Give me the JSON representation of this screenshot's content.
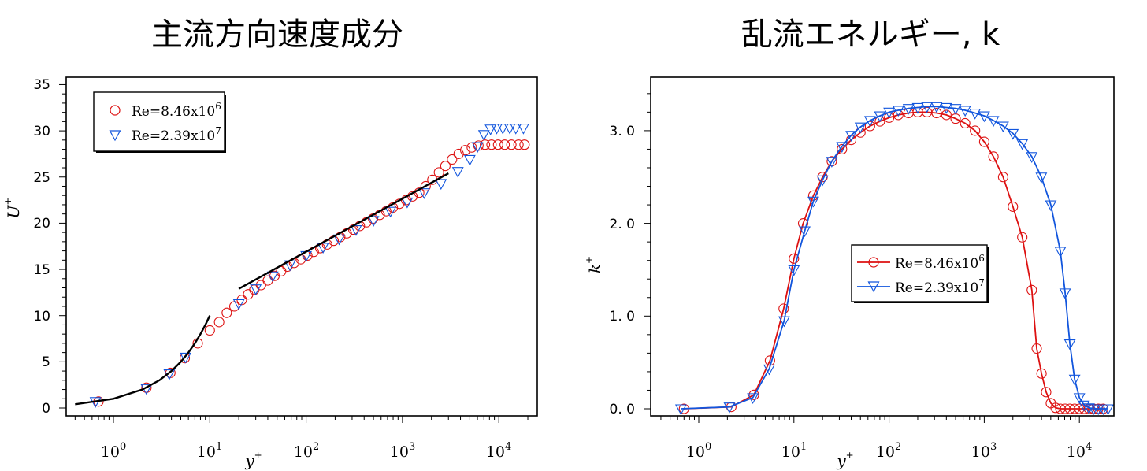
{
  "colors": {
    "red": "#dd1111",
    "blue": "#1155dd",
    "black": "#000000"
  },
  "charts": [
    {
      "id": "left",
      "title": "主流方向速度成分",
      "xlabel": "y",
      "xlabel_sup": "+",
      "ylabel": "U",
      "ylabel_sup": "+",
      "yticks": [
        "0",
        "5",
        "10",
        "15",
        "20",
        "25",
        "30",
        "35"
      ],
      "xtick_base": "10",
      "xtick_exps": [
        "0",
        "1",
        "2",
        "3",
        "4"
      ],
      "legend": [
        {
          "text": "Re=8.46x10",
          "sup": "6"
        },
        {
          "text": "Re=2.39x10",
          "sup": "7"
        }
      ]
    },
    {
      "id": "right",
      "title": "乱流エネルギー, k",
      "xlabel": "y",
      "xlabel_sup": "+",
      "ylabel": "k",
      "ylabel_sup": "+",
      "yticks": [
        "0. 0",
        "1. 0",
        "2. 0",
        "3. 0"
      ],
      "xtick_base": "10",
      "xtick_exps": [
        "0",
        "1",
        "2",
        "3",
        "4"
      ],
      "legend": [
        {
          "text": "Re=8.46x10",
          "sup": "6"
        },
        {
          "text": "Re=2.39x10",
          "sup": "7"
        }
      ]
    }
  ],
  "chart_data": [
    {
      "type": "scatter",
      "title": "主流方向速度成分",
      "xlabel": "y+",
      "ylabel": "U+",
      "xscale": "log",
      "xlim": [
        0.3,
        25000
      ],
      "ylim": [
        -1,
        35
      ],
      "legend_position": "top-left",
      "series": [
        {
          "name": "Re=8.46x10^6",
          "marker": "circle",
          "color": "red",
          "points": [
            [
              0.7,
              0.7
            ],
            [
              2.2,
              2.2
            ],
            [
              3.9,
              3.8
            ],
            [
              5.5,
              5.4
            ],
            [
              7.5,
              7.0
            ],
            [
              10,
              8.4
            ],
            [
              12.5,
              9.3
            ],
            [
              15,
              10.3
            ],
            [
              18,
              11.0
            ],
            [
              21.5,
              11.7
            ],
            [
              25,
              12.3
            ],
            [
              29,
              12.8
            ],
            [
              34,
              13.3
            ],
            [
              40,
              13.8
            ],
            [
              47,
              14.3
            ],
            [
              55,
              14.8
            ],
            [
              64,
              15.3
            ],
            [
              75,
              15.7
            ],
            [
              88,
              16.1
            ],
            [
              103,
              16.5
            ],
            [
              120,
              16.9
            ],
            [
              140,
              17.3
            ],
            [
              165,
              17.7
            ],
            [
              193,
              18.1
            ],
            [
              226,
              18.5
            ],
            [
              264,
              18.9
            ],
            [
              309,
              19.3
            ],
            [
              361,
              19.7
            ],
            [
              423,
              20.1
            ],
            [
              495,
              20.5
            ],
            [
              580,
              20.9
            ],
            [
              678,
              21.3
            ],
            [
              794,
              21.7
            ],
            [
              930,
              22.1
            ],
            [
              1090,
              22.5
            ],
            [
              1270,
              22.9
            ],
            [
              1490,
              23.3
            ],
            [
              1740,
              24.0
            ],
            [
              2040,
              24.7
            ],
            [
              2390,
              25.5
            ],
            [
              2790,
              26.2
            ],
            [
              3270,
              26.9
            ],
            [
              3830,
              27.5
            ],
            [
              4480,
              27.9
            ],
            [
              5240,
              28.2
            ],
            [
              6140,
              28.4
            ],
            [
              7180,
              28.5
            ],
            [
              8400,
              28.5
            ],
            [
              9830,
              28.5
            ],
            [
              11500,
              28.5
            ],
            [
              13500,
              28.5
            ],
            [
              16000,
              28.5
            ],
            [
              18500,
              28.5
            ]
          ]
        },
        {
          "name": "Re=2.39x10^7",
          "marker": "triangle-down",
          "color": "blue",
          "points": [
            [
              0.65,
              0.7
            ],
            [
              2.2,
              2.1
            ],
            [
              3.8,
              3.7
            ],
            [
              5.6,
              5.5
            ],
            [
              20,
              11.3
            ],
            [
              30,
              12.9
            ],
            [
              45,
              14.3
            ],
            [
              68,
              15.5
            ],
            [
              100,
              16.5
            ],
            [
              150,
              17.4
            ],
            [
              220,
              18.3
            ],
            [
              330,
              19.3
            ],
            [
              500,
              20.3
            ],
            [
              750,
              21.3
            ],
            [
              1120,
              22.3
            ],
            [
              1680,
              23.3
            ],
            [
              2510,
              24.3
            ],
            [
              3760,
              25.6
            ],
            [
              5000,
              26.9
            ],
            [
              6000,
              28.3
            ],
            [
              7000,
              29.6
            ],
            [
              8200,
              30.2
            ],
            [
              9500,
              30.3
            ],
            [
              11000,
              30.3
            ],
            [
              13000,
              30.3
            ],
            [
              15000,
              30.3
            ],
            [
              18000,
              30.3
            ]
          ]
        },
        {
          "name": "",
          "marker": "line",
          "color": "black",
          "points": [
            [
              0.4,
              0.4
            ],
            [
              1,
              1
            ],
            [
              2,
              2
            ],
            [
              3,
              3
            ],
            [
              4,
              4
            ],
            [
              5,
              5
            ],
            [
              6,
              6
            ],
            [
              7,
              7
            ],
            [
              8,
              8
            ],
            [
              9,
              9
            ],
            [
              10,
              10
            ]
          ]
        },
        {
          "name": "",
          "marker": "line",
          "color": "black",
          "points": [
            [
              20,
              12.9
            ],
            [
              3000,
              25.4
            ]
          ]
        }
      ]
    },
    {
      "type": "line",
      "title": "乱流エネルギー, k",
      "xlabel": "y+",
      "ylabel": "k+",
      "xscale": "log",
      "xlim": [
        0.3,
        25000
      ],
      "ylim": [
        -0.1,
        3.6
      ],
      "legend_position": "center",
      "series": [
        {
          "name": "Re=8.46x10^6",
          "marker": "circle",
          "color": "red",
          "points": [
            [
              0.7,
              0.0
            ],
            [
              2.2,
              0.02
            ],
            [
              3.8,
              0.15
            ],
            [
              5.6,
              0.52
            ],
            [
              7.8,
              1.08
            ],
            [
              10,
              1.62
            ],
            [
              12.5,
              2.0
            ],
            [
              16,
              2.3
            ],
            [
              20,
              2.5
            ],
            [
              25,
              2.67
            ],
            [
              32,
              2.8
            ],
            [
              40,
              2.9
            ],
            [
              50,
              2.98
            ],
            [
              63,
              3.05
            ],
            [
              80,
              3.1
            ],
            [
              100,
              3.14
            ],
            [
              125,
              3.17
            ],
            [
              160,
              3.19
            ],
            [
              200,
              3.2
            ],
            [
              250,
              3.2
            ],
            [
              316,
              3.19
            ],
            [
              400,
              3.17
            ],
            [
              500,
              3.13
            ],
            [
              630,
              3.08
            ],
            [
              800,
              3.0
            ],
            [
              1000,
              2.88
            ],
            [
              1250,
              2.72
            ],
            [
              1580,
              2.5
            ],
            [
              2000,
              2.18
            ],
            [
              2510,
              1.85
            ],
            [
              3160,
              1.28
            ],
            [
              3560,
              0.65
            ],
            [
              4000,
              0.38
            ],
            [
              4470,
              0.18
            ],
            [
              5010,
              0.06
            ],
            [
              5620,
              0.01
            ],
            [
              6310,
              0.0
            ],
            [
              7080,
              0.0
            ],
            [
              7940,
              0.0
            ],
            [
              8910,
              0.0
            ],
            [
              10000,
              0.0
            ],
            [
              11200,
              0.0
            ],
            [
              12600,
              0.0
            ],
            [
              14100,
              0.0
            ],
            [
              15800,
              0.0
            ],
            [
              17800,
              0.0
            ]
          ]
        },
        {
          "name": "Re=2.39x10^7",
          "marker": "triangle-down",
          "color": "blue",
          "points": [
            [
              0.65,
              0.0
            ],
            [
              2.1,
              0.02
            ],
            [
              3.7,
              0.12
            ],
            [
              5.5,
              0.43
            ],
            [
              7.9,
              0.95
            ],
            [
              10,
              1.5
            ],
            [
              13,
              1.92
            ],
            [
              16,
              2.24
            ],
            [
              20,
              2.47
            ],
            [
              25,
              2.67
            ],
            [
              32,
              2.83
            ],
            [
              40,
              2.95
            ],
            [
              50,
              3.04
            ],
            [
              63,
              3.11
            ],
            [
              80,
              3.16
            ],
            [
              100,
              3.2
            ],
            [
              125,
              3.22
            ],
            [
              160,
              3.24
            ],
            [
              200,
              3.25
            ],
            [
              250,
              3.26
            ],
            [
              316,
              3.26
            ],
            [
              400,
              3.25
            ],
            [
              500,
              3.24
            ],
            [
              630,
              3.22
            ],
            [
              800,
              3.19
            ],
            [
              1000,
              3.16
            ],
            [
              1250,
              3.11
            ],
            [
              1580,
              3.05
            ],
            [
              2000,
              2.97
            ],
            [
              2510,
              2.86
            ],
            [
              3160,
              2.72
            ],
            [
              3980,
              2.5
            ],
            [
              5010,
              2.2
            ],
            [
              6310,
              1.7
            ],
            [
              7080,
              1.25
            ],
            [
              7940,
              0.7
            ],
            [
              8910,
              0.32
            ],
            [
              10000,
              0.12
            ],
            [
              11200,
              0.04
            ],
            [
              12600,
              0.01
            ],
            [
              14100,
              0.0
            ],
            [
              15800,
              0.0
            ],
            [
              17800,
              0.0
            ],
            [
              20000,
              0.0
            ]
          ]
        }
      ]
    }
  ]
}
